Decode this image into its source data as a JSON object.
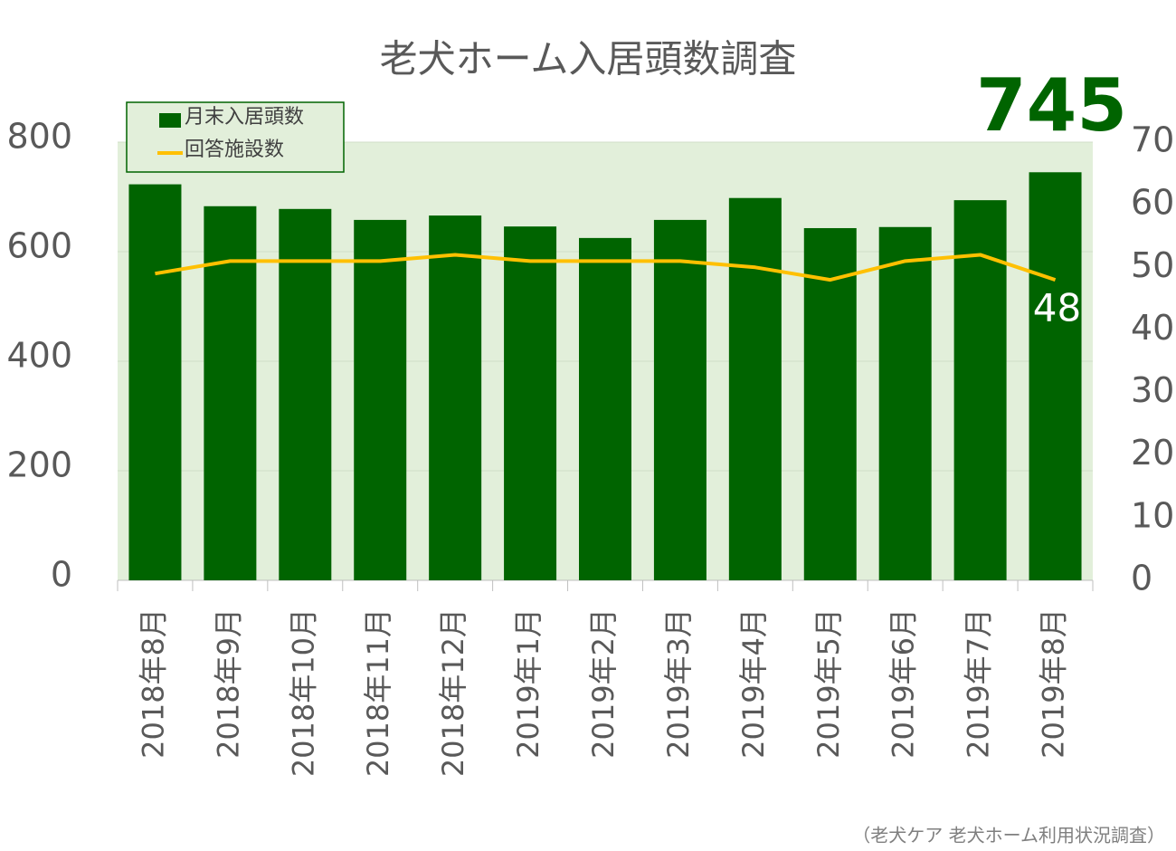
{
  "chart_data": {
    "type": "bar",
    "title": "老犬ホーム入居頭数調査",
    "source": "（老犬ケア 老犬ホーム利用状況調査）",
    "categories": [
      "2018年8月",
      "2018年9月",
      "2018年10月",
      "2018年11月",
      "2018年12月",
      "2019年1月",
      "2019年2月",
      "2019年3月",
      "2019年4月",
      "2019年5月",
      "2019年6月",
      "2019年7月",
      "2019年8月"
    ],
    "series": [
      {
        "name": "月末入居頭数",
        "color": "#006400",
        "values": [
          723,
          683,
          678,
          658,
          666,
          646,
          625,
          658,
          698,
          643,
          645,
          694,
          745
        ]
      },
      {
        "name": "回答施設数",
        "type": "line",
        "axis": "y2",
        "color": "#ffc000",
        "values": [
          49,
          51,
          51,
          51,
          52,
          51,
          51,
          51,
          50,
          48,
          51,
          52,
          48
        ]
      }
    ],
    "ylim": [
      0,
      800
    ],
    "yticks": [
      0,
      200,
      400,
      600,
      800
    ],
    "y2lim": [
      0,
      70
    ],
    "y2ticks": [
      0,
      10,
      20,
      30,
      40,
      50,
      60,
      70
    ],
    "grid": true,
    "legend": "upper left",
    "plot_background": "#e2efda"
  }
}
